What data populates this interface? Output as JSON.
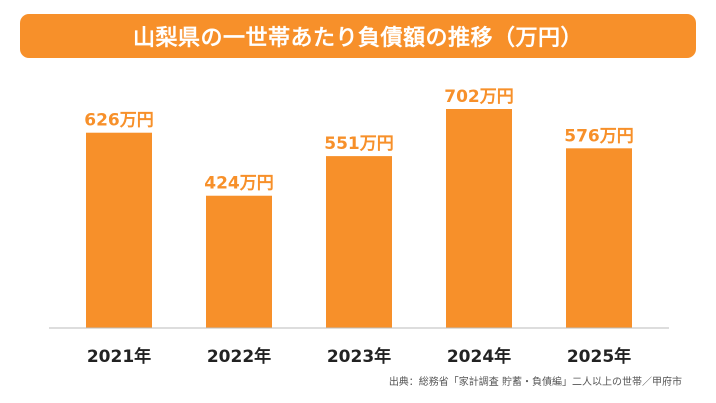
{
  "chart_data": {
    "type": "bar",
    "title": "山梨県の一世帯あたり負債額の推移（万円）",
    "categories": [
      "2021年",
      "2022年",
      "2023年",
      "2024年",
      "2025年"
    ],
    "values": [
      626,
      424,
      551,
      702,
      576
    ],
    "data_labels": [
      "626万円",
      "424万円",
      "551万円",
      "702万円",
      "576万円"
    ],
    "value_unit": "万円",
    "xlabel": "",
    "ylabel": "",
    "ylim": [
      0,
      702
    ],
    "grid": false,
    "legend": "none",
    "bar_color": "#f7902a",
    "label_color": "#f7902a"
  },
  "source": "出典：総務省「家計調査 貯蓄・負債編」二人以上の世帯／甲府市",
  "colors": {
    "accent": "#f7902a",
    "axis": "#bbbbbb",
    "category_text": "#222222"
  }
}
